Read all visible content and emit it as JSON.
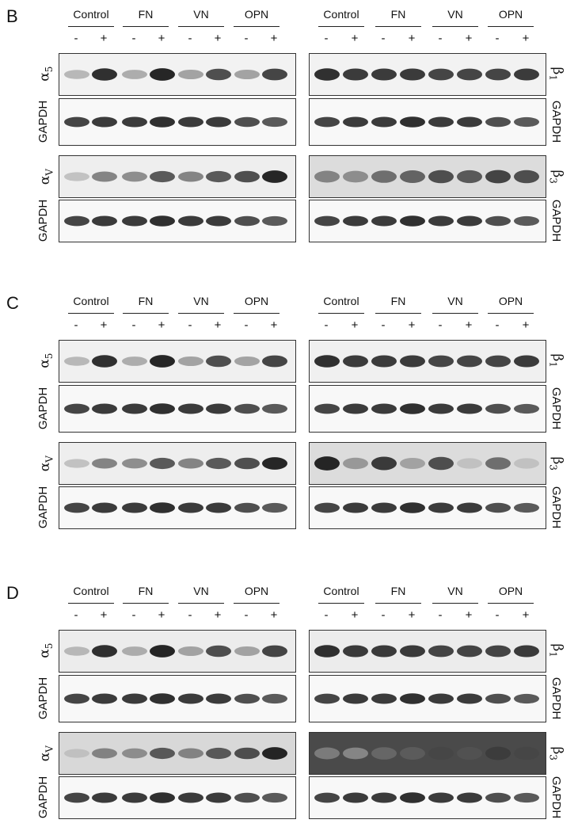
{
  "panels": [
    {
      "letter": "B",
      "groups": [
        "Control",
        "FN",
        "VN",
        "OPN"
      ],
      "signs": [
        "-",
        "+"
      ]
    },
    {
      "letter": "C",
      "groups": [
        "Control",
        "FN",
        "VN",
        "OPN"
      ],
      "signs": [
        "-",
        "+"
      ]
    },
    {
      "letter": "D",
      "groups": [
        "Control",
        "FN",
        "VN",
        "OPN"
      ],
      "signs": [
        "-",
        "+"
      ]
    }
  ],
  "labels": {
    "alpha5": "α",
    "alpha5_sub": "5",
    "alphav": "α",
    "alphav_sub": "V",
    "beta1": "β",
    "beta1_sub": "1",
    "beta3": "β",
    "beta3_sub": "3",
    "gapdh": "GAPDH"
  }
}
